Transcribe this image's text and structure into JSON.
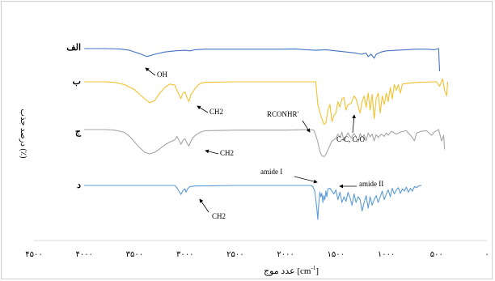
{
  "chart_data": {
    "type": "line",
    "title": "",
    "xlabel_prefix": "عدد موج ",
    "xlabel_unit": "[cm",
    "xlabel_sup": "-1",
    "xlabel_close": "]",
    "ylabel": "درصد جذب (٪)",
    "xlim": [
      4500,
      0
    ],
    "x_ticks": [
      4500,
      4000,
      3500,
      3000,
      2500,
      2000,
      1500,
      1000,
      500,
      0
    ],
    "x_tick_labels": [
      "۴۵۰۰",
      "۴۰۰۰",
      "۳۵۰۰",
      "۳۰۰۰",
      "۲۵۰۰",
      "۲۰۰۰",
      "۱۵۰۰",
      "۱۰۰۰",
      "۵۰۰",
      "۰"
    ],
    "grid": false,
    "series": [
      {
        "name": "الف",
        "color": "#4472c4",
        "points": [
          [
            4000,
            0
          ],
          [
            3800,
            0
          ],
          [
            3650,
            -0.5
          ],
          [
            3550,
            -3
          ],
          [
            3450,
            -9
          ],
          [
            3380,
            -14
          ],
          [
            3300,
            -10
          ],
          [
            3200,
            -6
          ],
          [
            3100,
            -4
          ],
          [
            3000,
            -3
          ],
          [
            2950,
            -4
          ],
          [
            2900,
            -2
          ],
          [
            2800,
            -1
          ],
          [
            2500,
            -1
          ],
          [
            2200,
            -1
          ],
          [
            2000,
            -1
          ],
          [
            1900,
            -0.5
          ],
          [
            1800,
            -2
          ],
          [
            1700,
            -3
          ],
          [
            1600,
            -2
          ],
          [
            1500,
            -4
          ],
          [
            1400,
            -6
          ],
          [
            1300,
            -8
          ],
          [
            1250,
            -10
          ],
          [
            1200,
            -8
          ],
          [
            1180,
            -14
          ],
          [
            1150,
            -10
          ],
          [
            1120,
            -17
          ],
          [
            1100,
            -10
          ],
          [
            1050,
            -6
          ],
          [
            1000,
            -4
          ],
          [
            900,
            -3
          ],
          [
            800,
            -2
          ],
          [
            700,
            -1
          ],
          [
            600,
            -1
          ],
          [
            520,
            -2
          ],
          [
            480,
            0
          ],
          [
            470,
            -40
          ]
        ]
      },
      {
        "name": "ب",
        "color": "#f2c12e",
        "points": [
          [
            4000,
            0
          ],
          [
            3800,
            0
          ],
          [
            3700,
            -1
          ],
          [
            3600,
            -5
          ],
          [
            3500,
            -14
          ],
          [
            3450,
            -22
          ],
          [
            3400,
            -30
          ],
          [
            3350,
            -37
          ],
          [
            3300,
            -33
          ],
          [
            3250,
            -20
          ],
          [
            3200,
            -10
          ],
          [
            3150,
            -4
          ],
          [
            3100,
            -6
          ],
          [
            3080,
            -15
          ],
          [
            3060,
            -22
          ],
          [
            3040,
            -30
          ],
          [
            3020,
            -20
          ],
          [
            3000,
            -18
          ],
          [
            2980,
            -28
          ],
          [
            2960,
            -35
          ],
          [
            2940,
            -22
          ],
          [
            2920,
            -18
          ],
          [
            2900,
            -12
          ],
          [
            2880,
            -8
          ],
          [
            2850,
            -3
          ],
          [
            2800,
            -1
          ],
          [
            2500,
            0
          ],
          [
            2000,
            0
          ],
          [
            1700,
            0
          ],
          [
            1680,
            -40
          ],
          [
            1650,
            -60
          ],
          [
            1620,
            -75
          ],
          [
            1600,
            -72
          ],
          [
            1580,
            -50
          ],
          [
            1560,
            -40
          ],
          [
            1540,
            -70
          ],
          [
            1520,
            -60
          ],
          [
            1500,
            -55
          ],
          [
            1480,
            -35
          ],
          [
            1460,
            -45
          ],
          [
            1440,
            -30
          ],
          [
            1420,
            -28
          ],
          [
            1400,
            -50
          ],
          [
            1380,
            -40
          ],
          [
            1350,
            -38
          ],
          [
            1320,
            -25
          ],
          [
            1300,
            -30
          ],
          [
            1260,
            -55
          ],
          [
            1240,
            -35
          ],
          [
            1220,
            -25
          ],
          [
            1200,
            -45
          ],
          [
            1180,
            -20
          ],
          [
            1160,
            -50
          ],
          [
            1140,
            -22
          ],
          [
            1120,
            -65
          ],
          [
            1100,
            -30
          ],
          [
            1080,
            -20
          ],
          [
            1060,
            -55
          ],
          [
            1040,
            -25
          ],
          [
            1020,
            -40
          ],
          [
            1000,
            -20
          ],
          [
            980,
            -35
          ],
          [
            960,
            -10
          ],
          [
            940,
            -30
          ],
          [
            920,
            -5
          ],
          [
            900,
            -15
          ],
          [
            880,
            -5
          ],
          [
            860,
            -20
          ],
          [
            840,
            -4
          ],
          [
            800,
            -3
          ],
          [
            700,
            -1
          ],
          [
            500,
            0
          ],
          [
            470,
            -8
          ],
          [
            440,
            5
          ],
          [
            420,
            -15
          ],
          [
            400,
            -25
          ],
          [
            390,
            0
          ]
        ]
      },
      {
        "name": "ج",
        "color": "#a5a5a5",
        "points": [
          [
            4000,
            0
          ],
          [
            3800,
            0
          ],
          [
            3700,
            -1
          ],
          [
            3600,
            -5
          ],
          [
            3550,
            -12
          ],
          [
            3500,
            -22
          ],
          [
            3450,
            -32
          ],
          [
            3400,
            -40
          ],
          [
            3350,
            -43
          ],
          [
            3300,
            -40
          ],
          [
            3250,
            -34
          ],
          [
            3200,
            -27
          ],
          [
            3150,
            -22
          ],
          [
            3100,
            -18
          ],
          [
            3080,
            -12
          ],
          [
            3060,
            -19
          ],
          [
            3040,
            -26
          ],
          [
            3020,
            -19
          ],
          [
            3000,
            -16
          ],
          [
            2980,
            -24
          ],
          [
            2960,
            -29
          ],
          [
            2940,
            -20
          ],
          [
            2920,
            -14
          ],
          [
            2880,
            -8
          ],
          [
            2850,
            -5
          ],
          [
            2800,
            -2
          ],
          [
            2500,
            -1
          ],
          [
            2000,
            -1
          ],
          [
            1750,
            0
          ],
          [
            1720,
            -1
          ],
          [
            1700,
            -10
          ],
          [
            1680,
            -22
          ],
          [
            1660,
            -38
          ],
          [
            1640,
            -46
          ],
          [
            1620,
            -48
          ],
          [
            1600,
            -44
          ],
          [
            1580,
            -36
          ],
          [
            1560,
            -28
          ],
          [
            1540,
            -20
          ],
          [
            1520,
            -18
          ],
          [
            1500,
            -15
          ],
          [
            1480,
            -8
          ],
          [
            1460,
            -14
          ],
          [
            1440,
            -5
          ],
          [
            1420,
            -20
          ],
          [
            1400,
            -12
          ],
          [
            1380,
            -6
          ],
          [
            1350,
            -15
          ],
          [
            1320,
            -7
          ],
          [
            1300,
            -12
          ],
          [
            1280,
            -22
          ],
          [
            1260,
            -7
          ],
          [
            1240,
            -14
          ],
          [
            1220,
            -9
          ],
          [
            1200,
            -20
          ],
          [
            1180,
            -6
          ],
          [
            1160,
            -13
          ],
          [
            1140,
            -8
          ],
          [
            1120,
            -20
          ],
          [
            1100,
            -9
          ],
          [
            1080,
            -14
          ],
          [
            1050,
            -8
          ],
          [
            1020,
            -12
          ],
          [
            1000,
            -6
          ],
          [
            980,
            -10
          ],
          [
            950,
            -3
          ],
          [
            900,
            -8
          ],
          [
            850,
            -4
          ],
          [
            800,
            -2
          ],
          [
            750,
            -12
          ],
          [
            720,
            -20
          ],
          [
            700,
            -6
          ],
          [
            650,
            -3
          ],
          [
            600,
            -2
          ],
          [
            550,
            -10
          ],
          [
            520,
            -4
          ],
          [
            480,
            0
          ],
          [
            450,
            -20
          ],
          [
            430,
            -10
          ],
          [
            420,
            -35
          ]
        ]
      },
      {
        "name": "د",
        "color": "#5b9bd5",
        "points": [
          [
            4000,
            0
          ],
          [
            3500,
            0
          ],
          [
            3100,
            0
          ],
          [
            3080,
            -4
          ],
          [
            3060,
            -10
          ],
          [
            3040,
            -16
          ],
          [
            3020,
            -9
          ],
          [
            3000,
            -6
          ],
          [
            2990,
            -12
          ],
          [
            2970,
            -5
          ],
          [
            2950,
            -2
          ],
          [
            2900,
            -1
          ],
          [
            2500,
            0
          ],
          [
            2000,
            0
          ],
          [
            1750,
            0
          ],
          [
            1730,
            -2
          ],
          [
            1720,
            -6
          ],
          [
            1710,
            -10
          ],
          [
            1700,
            -25
          ],
          [
            1690,
            -40
          ],
          [
            1680,
            -60
          ],
          [
            1670,
            -30
          ],
          [
            1660,
            -12
          ],
          [
            1650,
            -20
          ],
          [
            1640,
            -14
          ],
          [
            1630,
            -30
          ],
          [
            1620,
            -18
          ],
          [
            1610,
            -25
          ],
          [
            1600,
            -10
          ],
          [
            1590,
            -20
          ],
          [
            1580,
            -6
          ],
          [
            1560,
            -5
          ],
          [
            1540,
            -10
          ],
          [
            1520,
            -15
          ],
          [
            1500,
            -8
          ],
          [
            1480,
            -25
          ],
          [
            1460,
            -12
          ],
          [
            1440,
            -30
          ],
          [
            1420,
            -20
          ],
          [
            1400,
            -28
          ],
          [
            1380,
            -12
          ],
          [
            1360,
            -22
          ],
          [
            1340,
            -35
          ],
          [
            1320,
            -15
          ],
          [
            1300,
            -30
          ],
          [
            1280,
            -20
          ],
          [
            1260,
            -25
          ],
          [
            1240,
            -45
          ],
          [
            1220,
            -30
          ],
          [
            1200,
            -18
          ],
          [
            1180,
            -40
          ],
          [
            1160,
            -20
          ],
          [
            1140,
            -35
          ],
          [
            1120,
            -25
          ],
          [
            1100,
            -18
          ],
          [
            1080,
            -30
          ],
          [
            1060,
            -20
          ],
          [
            1040,
            -10
          ],
          [
            1020,
            -25
          ],
          [
            1000,
            -15
          ],
          [
            980,
            -8
          ],
          [
            960,
            -20
          ],
          [
            940,
            -5
          ],
          [
            920,
            -15
          ],
          [
            900,
            -8
          ],
          [
            880,
            -4
          ],
          [
            860,
            -14
          ],
          [
            840,
            -6
          ],
          [
            820,
            -10
          ],
          [
            800,
            -3
          ],
          [
            780,
            -12
          ],
          [
            760,
            -5
          ],
          [
            740,
            -10
          ],
          [
            720,
            -2
          ],
          [
            700,
            -4
          ],
          [
            680,
            -1
          ],
          [
            650,
            0
          ]
        ]
      }
    ],
    "annotations": [
      {
        "text": "OH"
      },
      {
        "text": "CH2"
      },
      {
        "text": "RCONHR'"
      },
      {
        "text": "C-C, C-O"
      },
      {
        "text": "CH2"
      },
      {
        "text": "amide I"
      },
      {
        "text": "amide II"
      },
      {
        "text": "CH2"
      }
    ]
  }
}
